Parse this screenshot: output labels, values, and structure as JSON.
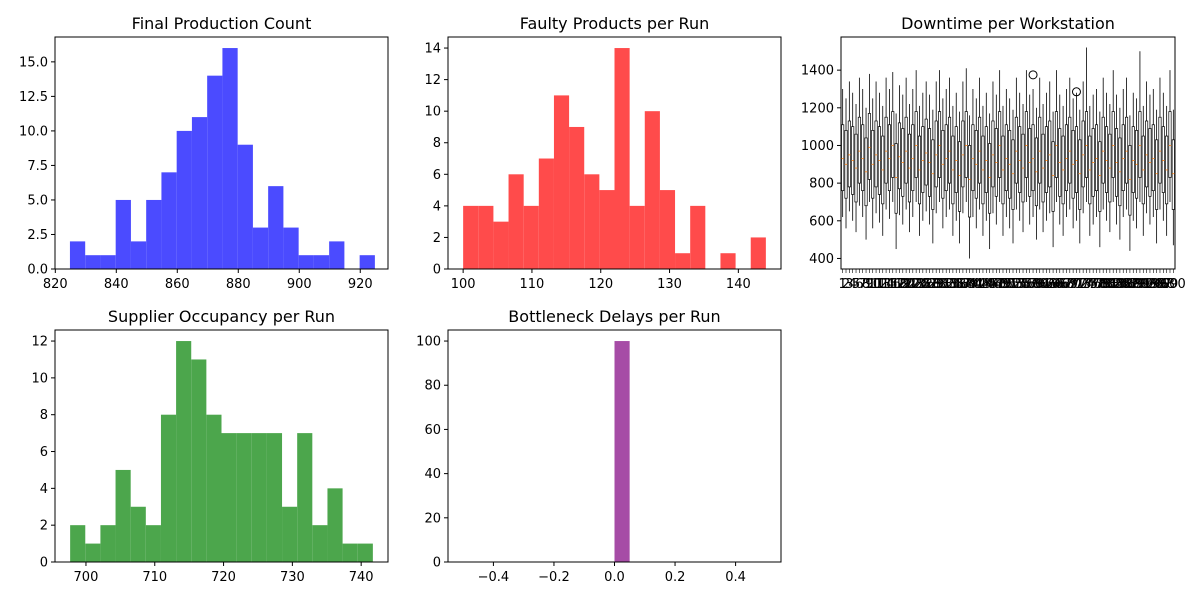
{
  "chart_data": [
    {
      "type": "histogram",
      "title": "Final Production Count",
      "color": "#4b4bff",
      "xlim": [
        819.9,
        929.1
      ],
      "ylim": [
        0,
        16.8
      ],
      "bin_start": 824.8,
      "bin_width": 5.0,
      "counts": [
        2,
        1,
        1,
        5,
        2,
        5,
        7,
        10,
        11,
        14,
        16,
        9,
        3,
        6,
        3,
        1,
        1,
        2,
        0,
        1
      ],
      "xticks": [
        820,
        840,
        860,
        880,
        900,
        920
      ],
      "xtick_labels": [
        "820",
        "840",
        "860",
        "880",
        "900",
        "920"
      ],
      "yticks": [
        0,
        2.5,
        5,
        7.5,
        10,
        12.5,
        15
      ],
      "ytick_labels": [
        "0.0",
        "2.5",
        "5.0",
        "7.5",
        "10.0",
        "12.5",
        "15.0"
      ]
    },
    {
      "type": "histogram",
      "title": "Faulty Products per Run",
      "color": "#ff4b4b",
      "xlim": [
        97.8,
        146.2
      ],
      "ylim": [
        0,
        14.7
      ],
      "bin_start": 100,
      "bin_width": 2.2,
      "counts": [
        4,
        4,
        3,
        6,
        4,
        7,
        11,
        9,
        6,
        5,
        14,
        4,
        10,
        5,
        1,
        4,
        0,
        1,
        0,
        2
      ],
      "xticks": [
        100,
        110,
        120,
        130,
        140
      ],
      "xtick_labels": [
        "100",
        "110",
        "120",
        "130",
        "140"
      ],
      "yticks": [
        0,
        2,
        4,
        6,
        8,
        10,
        12,
        14
      ],
      "ytick_labels": [
        "0",
        "2",
        "4",
        "6",
        "8",
        "10",
        "12",
        "14"
      ]
    },
    {
      "type": "boxplot",
      "title": "Downtime per Workstation",
      "n_boxes": 100,
      "xlim": [
        0.5,
        100.5
      ],
      "ylim": [
        344,
        1576
      ],
      "yticks": [
        400,
        600,
        800,
        1000,
        1200,
        1400
      ],
      "ytick_labels": [
        "400",
        "600",
        "800",
        "1000",
        "1200",
        "1400"
      ],
      "xtick_labels": [
        "1",
        "2",
        "3",
        "4",
        "5",
        "6",
        "7",
        "8",
        "9",
        "10",
        "11",
        "12",
        "13",
        "14",
        "15",
        "16",
        "17",
        "18",
        "19",
        "20",
        "21",
        "22",
        "23",
        "24",
        "25",
        "26",
        "27",
        "28",
        "29",
        "30",
        "31",
        "32",
        "33",
        "34",
        "35",
        "36",
        "37",
        "38",
        "39",
        "40",
        "41",
        "42",
        "43",
        "44",
        "45",
        "46",
        "47",
        "48",
        "49",
        "50",
        "51",
        "52",
        "53",
        "54",
        "55",
        "56",
        "57",
        "58",
        "59",
        "60",
        "61",
        "62",
        "63",
        "64",
        "65",
        "66",
        "67",
        "68",
        "69",
        "70",
        "71",
        "72",
        "73",
        "74",
        "75",
        "76",
        "77",
        "78",
        "79",
        "80",
        "81",
        "82",
        "83",
        "84",
        "85",
        "86",
        "87",
        "88",
        "89",
        "90",
        "91",
        "92",
        "93",
        "94",
        "95",
        "96",
        "97",
        "98",
        "99",
        "100"
      ],
      "whisker_low": [
        620,
        560,
        650,
        600,
        540,
        680,
        620,
        500,
        700,
        560,
        640,
        590,
        520,
        660,
        610,
        700,
        450,
        630,
        580,
        660,
        540,
        620,
        700,
        520,
        600,
        650,
        580,
        480,
        640,
        700,
        560,
        620,
        660,
        520,
        600,
        480,
        640,
        700,
        400,
        620,
        560,
        660,
        520,
        600,
        450,
        640,
        580,
        700,
        520,
        620,
        560,
        480,
        660,
        600,
        540,
        700,
        580,
        620,
        500,
        660,
        540,
        600,
        640,
        460,
        700,
        580,
        520,
        620,
        660,
        560,
        600,
        480,
        640,
        700,
        520,
        580,
        620,
        460,
        660,
        600,
        540,
        700,
        580,
        500,
        620,
        660,
        440,
        600,
        560,
        700,
        520,
        640,
        580,
        620,
        480,
        660,
        600,
        520,
        700,
        470
      ],
      "q1": [
        760,
        720,
        780,
        740,
        700,
        800,
        760,
        680,
        820,
        720,
        780,
        740,
        690,
        800,
        760,
        830,
        640,
        770,
        730,
        800,
        700,
        760,
        830,
        690,
        750,
        790,
        730,
        660,
        780,
        830,
        720,
        760,
        800,
        690,
        750,
        650,
        780,
        830,
        620,
        760,
        720,
        800,
        690,
        750,
        640,
        780,
        730,
        830,
        690,
        760,
        720,
        660,
        800,
        750,
        700,
        830,
        730,
        760,
        680,
        800,
        700,
        750,
        780,
        650,
        830,
        730,
        690,
        760,
        800,
        720,
        750,
        660,
        780,
        830,
        690,
        730,
        760,
        650,
        800,
        750,
        700,
        830,
        730,
        680,
        760,
        800,
        630,
        750,
        720,
        830,
        690,
        780,
        730,
        760,
        660,
        800,
        750,
        690,
        830,
        660
      ],
      "median": [
        930,
        900,
        950,
        920,
        880,
        970,
        930,
        860,
        990,
        900,
        950,
        920,
        870,
        970,
        930,
        1000,
        830,
        940,
        910,
        970,
        880,
        930,
        1000,
        870,
        920,
        960,
        910,
        850,
        950,
        1000,
        900,
        930,
        970,
        870,
        920,
        840,
        950,
        1000,
        820,
        930,
        900,
        970,
        870,
        920,
        830,
        950,
        910,
        1000,
        870,
        930,
        900,
        850,
        970,
        920,
        880,
        1000,
        910,
        930,
        860,
        970,
        880,
        920,
        950,
        840,
        1000,
        910,
        870,
        930,
        970,
        900,
        920,
        850,
        950,
        1000,
        870,
        910,
        930,
        840,
        970,
        920,
        880,
        1000,
        910,
        860,
        930,
        970,
        820,
        920,
        900,
        1000,
        870,
        950,
        910,
        930,
        850,
        970,
        920,
        870,
        1000,
        850
      ],
      "q3": [
        1110,
        1080,
        1130,
        1100,
        1060,
        1150,
        1110,
        1040,
        1170,
        1080,
        1130,
        1100,
        1050,
        1150,
        1110,
        1180,
        1010,
        1120,
        1090,
        1150,
        1060,
        1110,
        1180,
        1050,
        1100,
        1140,
        1090,
        1030,
        1130,
        1180,
        1080,
        1110,
        1150,
        1050,
        1100,
        1020,
        1130,
        1180,
        1000,
        1110,
        1080,
        1150,
        1050,
        1100,
        1010,
        1130,
        1090,
        1180,
        1050,
        1110,
        1080,
        1030,
        1150,
        1100,
        1060,
        1180,
        1090,
        1110,
        1040,
        1150,
        1060,
        1100,
        1130,
        1020,
        1180,
        1090,
        1050,
        1110,
        1150,
        1080,
        1100,
        1030,
        1130,
        1180,
        1050,
        1090,
        1110,
        1020,
        1150,
        1100,
        1060,
        1180,
        1090,
        1040,
        1110,
        1150,
        1000,
        1100,
        1080,
        1180,
        1050,
        1130,
        1090,
        1110,
        1030,
        1150,
        1100,
        1050,
        1180,
        1030
      ],
      "whisker_high": [
        1300,
        1250,
        1340,
        1280,
        1220,
        1360,
        1300,
        1200,
        1380,
        1250,
        1340,
        1280,
        1210,
        1360,
        1300,
        1390,
        1170,
        1320,
        1270,
        1360,
        1220,
        1300,
        1400,
        1210,
        1280,
        1340,
        1270,
        1190,
        1340,
        1400,
        1250,
        1300,
        1360,
        1210,
        1280,
        1180,
        1340,
        1410,
        1160,
        1300,
        1250,
        1360,
        1210,
        1280,
        1170,
        1340,
        1270,
        1400,
        1210,
        1300,
        1250,
        1190,
        1360,
        1280,
        1220,
        1400,
        1270,
        1300,
        1200,
        1360,
        1220,
        1280,
        1340,
        1180,
        1400,
        1270,
        1210,
        1300,
        1360,
        1250,
        1280,
        1190,
        1340,
        1520,
        1210,
        1270,
        1300,
        1180,
        1360,
        1280,
        1220,
        1400,
        1270,
        1200,
        1300,
        1360,
        1160,
        1280,
        1250,
        1500,
        1210,
        1340,
        1270,
        1300,
        1190,
        1360,
        1280,
        1210,
        1400,
        1190
      ],
      "outliers": [
        {
          "box": 58,
          "value": 1375
        },
        {
          "box": 71,
          "value": 1285
        }
      ]
    },
    {
      "type": "histogram",
      "title": "Supplier Occupancy per Run",
      "color": "#4ca64c",
      "xlim": [
        695.5,
        743.9
      ],
      "ylim": [
        0,
        12.6
      ],
      "bin_start": 697.7,
      "bin_width": 2.2,
      "counts": [
        2,
        1,
        2,
        5,
        3,
        2,
        8,
        12,
        11,
        8,
        7,
        7,
        7,
        7,
        3,
        7,
        2,
        4,
        1,
        1
      ],
      "xticks": [
        700,
        710,
        720,
        730,
        740
      ],
      "xtick_labels": [
        "700",
        "710",
        "720",
        "730",
        "740"
      ],
      "yticks": [
        0,
        2,
        4,
        6,
        8,
        10,
        12
      ],
      "ytick_labels": [
        "0",
        "2",
        "4",
        "6",
        "8",
        "10",
        "12"
      ]
    },
    {
      "type": "histogram",
      "title": "Bottleneck Delays per Run",
      "color": "#a64ca6",
      "xlim": [
        -0.55,
        0.55
      ],
      "ylim": [
        0,
        105
      ],
      "bin_start": 0,
      "bin_width": 0.05,
      "counts": [
        100
      ],
      "xticks": [
        -0.4,
        -0.2,
        0,
        0.2,
        0.4
      ],
      "xtick_labels": [
        "−0.4",
        "−0.2",
        "0.0",
        "0.2",
        "0.4"
      ],
      "yticks": [
        0,
        20,
        40,
        60,
        80,
        100
      ],
      "ytick_labels": [
        "0",
        "20",
        "40",
        "60",
        "80",
        "100"
      ]
    }
  ]
}
